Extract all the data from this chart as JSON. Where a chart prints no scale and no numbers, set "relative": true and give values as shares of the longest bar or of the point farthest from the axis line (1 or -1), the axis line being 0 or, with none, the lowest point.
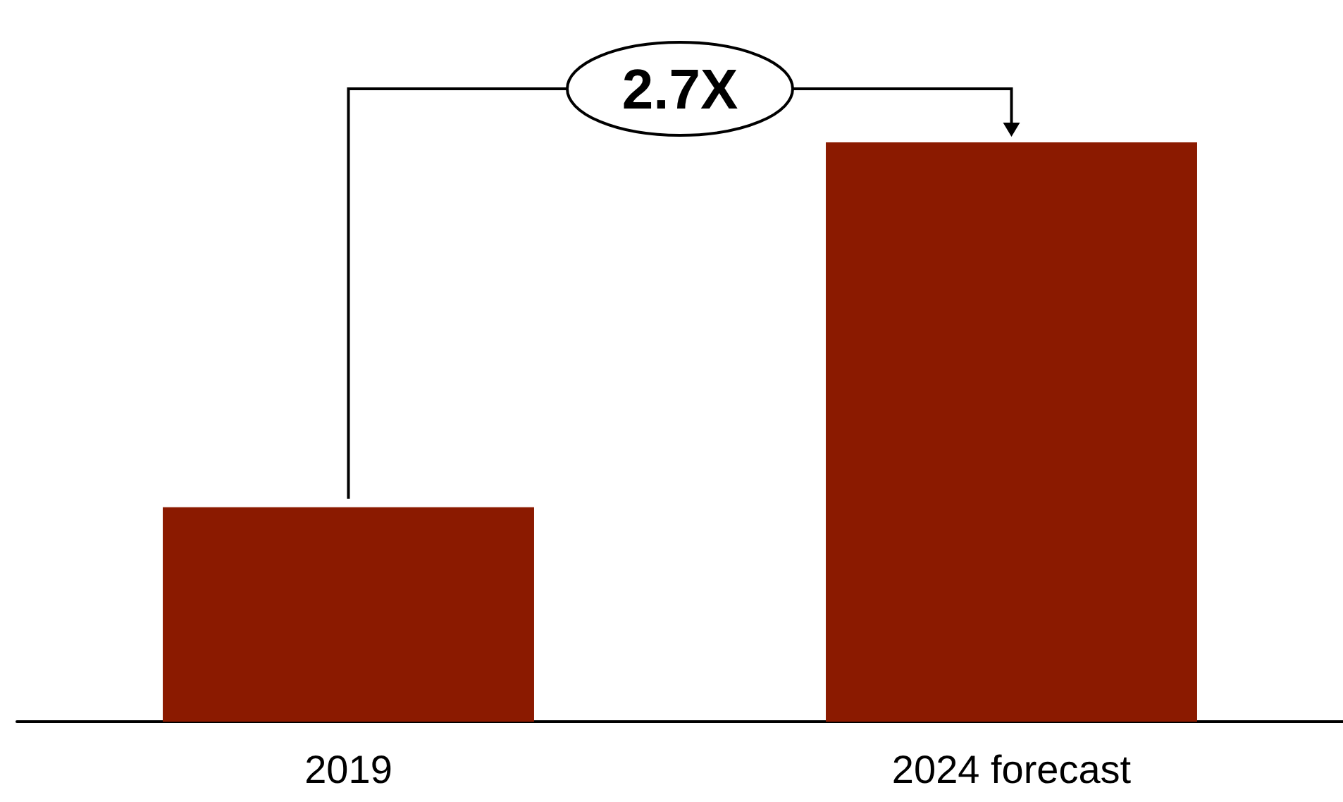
{
  "chart_data": {
    "type": "bar",
    "relative": true,
    "categories": [
      "2019",
      "2024 forecast"
    ],
    "values": [
      0.37,
      1
    ],
    "color": "#8b1a00",
    "annotations": [
      "2.7X"
    ]
  }
}
